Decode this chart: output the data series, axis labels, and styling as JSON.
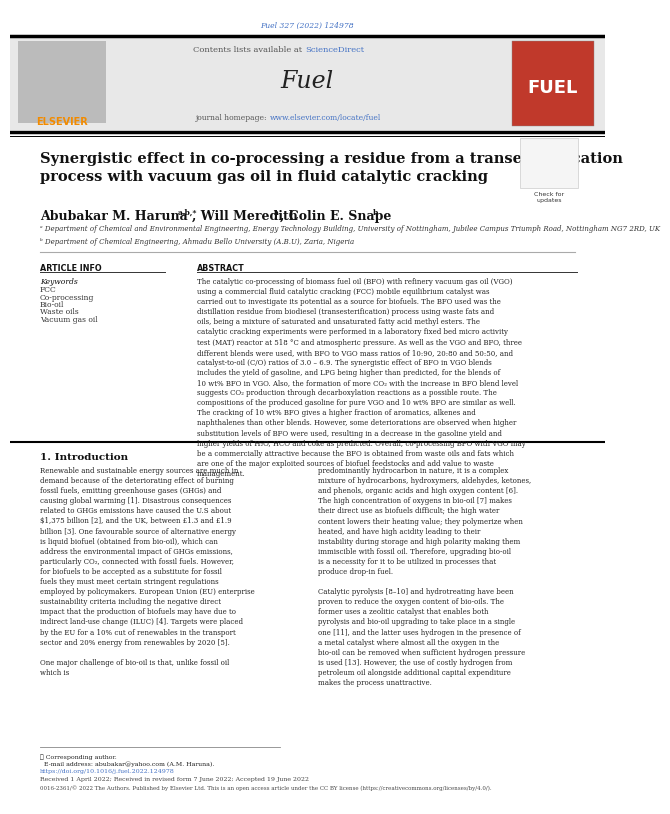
{
  "page_width": 5.95,
  "page_height": 7.94,
  "background_color": "#ffffff",
  "journal_ref": "Fuel 327 (2022) 124978",
  "journal_ref_color": "#4472c4",
  "header_bg": "#e8e8e8",
  "contents_text": "Contents lists available at ",
  "sciencedirect_text": "ScienceDirect",
  "sciencedirect_color": "#4472c4",
  "journal_name": "Fuel",
  "journal_homepage_text": "journal homepage: ",
  "journal_homepage_url": "www.elsevier.com/locate/fuel",
  "journal_url_color": "#4472c4",
  "elsevier_text": "ELSEVIER",
  "elsevier_color": "#f28b00",
  "title": "Synergistic effect in co-processing a residue from a transesterification\nprocess with vacuum gas oil in fluid catalytic cracking",
  "title_fontsize": 10.5,
  "authors_fontsize": 9.0,
  "affil1": "ᵃ Department of Chemical and Environmental Engineering, Energy Technology Building, University of Nottingham, Jubilee Campus Triumph Road, Nottingham NG7 2RD, UK",
  "affil2": "ᵇ Department of Chemical Engineering, Ahmadu Bello University (A.B.U), Zaria, Nigeria",
  "affil_fontsize": 5.0,
  "article_info_title": "ARTICLE INFO",
  "abstract_title": "ABSTRACT",
  "keywords_label": "Keywords",
  "keywords": [
    "FCC",
    "Co-processing",
    "Bio-oil",
    "Waste oils",
    "Vacuum gas oil"
  ],
  "abstract_text": "The catalytic co-processing of biomass fuel oil (BFO) with refinery vacuum gas oil (VGO) using a commercial fluid catalytic cracking (FCC) mobile equilibrium catalyst was carried out to investigate its potential as a source for biofuels. The BFO used was the distillation residue from biodiesel (transesterification) process using waste fats and oils, being a mixture of saturated and unsaturated fatty acid methyl esters. The catalytic cracking experiments were performed in a laboratory fixed bed micro activity test (MAT) reactor at 518 °C and atmospheric pressure. As well as the VGO and BFO, three different blends were used, with BFO to VGO mass ratios of 10:90, 20:80 and 50:50, and catalyst-to-oil (C/O) ratios of 3.0 – 6.9. The synergistic effect of BFO in VGO blends includes the yield of gasoline, and LPG being higher than predicted, for the blends of 10 wt% BFO in VGO. Also, the formation of more CO₂ with the increase in BFO blend level suggests CO₂ production through decarboxylation reactions as a possible route. The compositions of the produced gasoline for pure VGO and 10 wt% BFO are similar as well. The cracking of 10 wt% BFO gives a higher fraction of aromatics, alkenes and naphthalenes than other blends. However, some deteriorations are observed when higher substitution levels of BFO were used, resulting in a decrease in the gasoline yield and higher yields of H₂O, HCO and coke as predicted. Overall, co-processing BFO with VGO may be a commercially attractive because the BFO is obtained from waste oils and fats which are one of the major exploited sources of biofuel feedstocks and add value to waste management.",
  "abstract_fontsize": 5.0,
  "intro_title": "1. Introduction",
  "intro_text1": "Renewable and sustainable energy sources are much in demand because of the deteriorating effect of burning fossil fuels, emitting greenhouse gases (GHGs) and causing global warming [1]. Disastrous consequences related to GHGs emissions have caused the U.S about $1,375 billion [2], and the UK, between £1.3 and £1.9 billion [3]. One favourable source of alternative energy is liquid biofuel (obtained from bio-oil), which can address the environmental impact of GHGs emissions, particularly CO₂, connected with fossil fuels. However, for biofuels to be accepted as a substitute for fossil fuels they must meet certain stringent regulations employed by policymakers. European Union (EU) enterprise sustainability criteria including the negative direct impact that the production of biofuels may have due to indirect land-use change (ILUC) [4]. Targets were placed by the EU for a 10% cut of renewables in the transport sector and 20% energy from renewables by 2020 [5].\n\nOne major challenge of bio-oil is that, unlike fossil oil which is",
  "intro_text2": "predominantly hydrocarbon in nature, it is a complex mixture of hydrocarbons, hydroxymers, aldehydes, ketones, and phenols, organic acids and high oxygen content [6]. The high concentration of oxygens in bio-oil [7] makes their direct use as biofuels difficult; the high water content lowers their heating value; they polymerize when heated, and have high acidity leading to their instability during storage and high polarity making them immiscible with fossil oil. Therefore, upgrading bio-oil is a necessity for it to be utilized in processes that produce drop-in fuel.\n\nCatalytic pyrolysis [8–10] and hydrotreating have been proven to reduce the oxygen content of bio-oils. The former uses a zeolitic catalyst that enables both pyrolysis and bio-oil upgrading to take place in a single one [11], and the latter uses hydrogen in the presence of a metal catalyst where almost all the oxygen in the bio-oil can be removed when sufficient hydrogen pressure is used [13]. However, the use of costly hydrogen from petroleum oil alongside additional capital expenditure makes the process unattractive.",
  "intro_col_fontsize": 5.0,
  "footer_star": "★ Corresponding author.",
  "footer_email": "  E-mail address: abubakar@yahoo.com (A.M. Haruna).",
  "doi_text": "https://doi.org/10.1016/j.fuel.2022.124978",
  "received_text": "Received 1 April 2022; Received in revised form 7 June 2022; Accepted 19 June 2022",
  "license_text": "0016-2361/© 2022 The Authors. Published by Elsevier Ltd. This is an open access article under the CC BY license (https://creativecommons.org/licenses/by/4.0/).",
  "footer_fontsize": 4.5,
  "separator_color": "#000000",
  "header_line_color": "#000000"
}
